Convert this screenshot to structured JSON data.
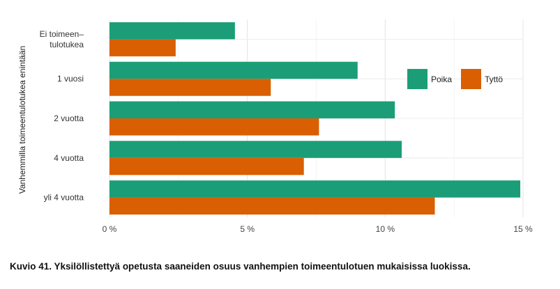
{
  "chart_data": {
    "type": "bar",
    "orientation": "horizontal",
    "ylabel": "Vanhemmilla toimeentulotukea enintään",
    "categories": [
      [
        "Ei toimeen–",
        "tulotukea"
      ],
      [
        "1 vuosi"
      ],
      [
        "2 vuotta"
      ],
      [
        "4 vuotta"
      ],
      [
        "yli 4 vuotta"
      ]
    ],
    "series": [
      {
        "name": "Poika",
        "color": "#1b9e77",
        "values": [
          4.55,
          9.0,
          10.35,
          10.6,
          14.9
        ]
      },
      {
        "name": "Tyttö",
        "color": "#d95f02",
        "values": [
          2.4,
          5.85,
          7.6,
          7.05,
          11.8
        ]
      }
    ],
    "xlim": [
      0,
      15
    ],
    "xticks": [
      0,
      5,
      10,
      15
    ],
    "xtick_labels": [
      "0 %",
      "5 %",
      "10 %",
      "15 %"
    ],
    "grid": true,
    "legend_position": "top-right"
  },
  "caption": "Kuvio 41. Yksilöllistettyä opetusta saaneiden osuus vanhempien toimeentulotuen mukaisissa luokissa."
}
